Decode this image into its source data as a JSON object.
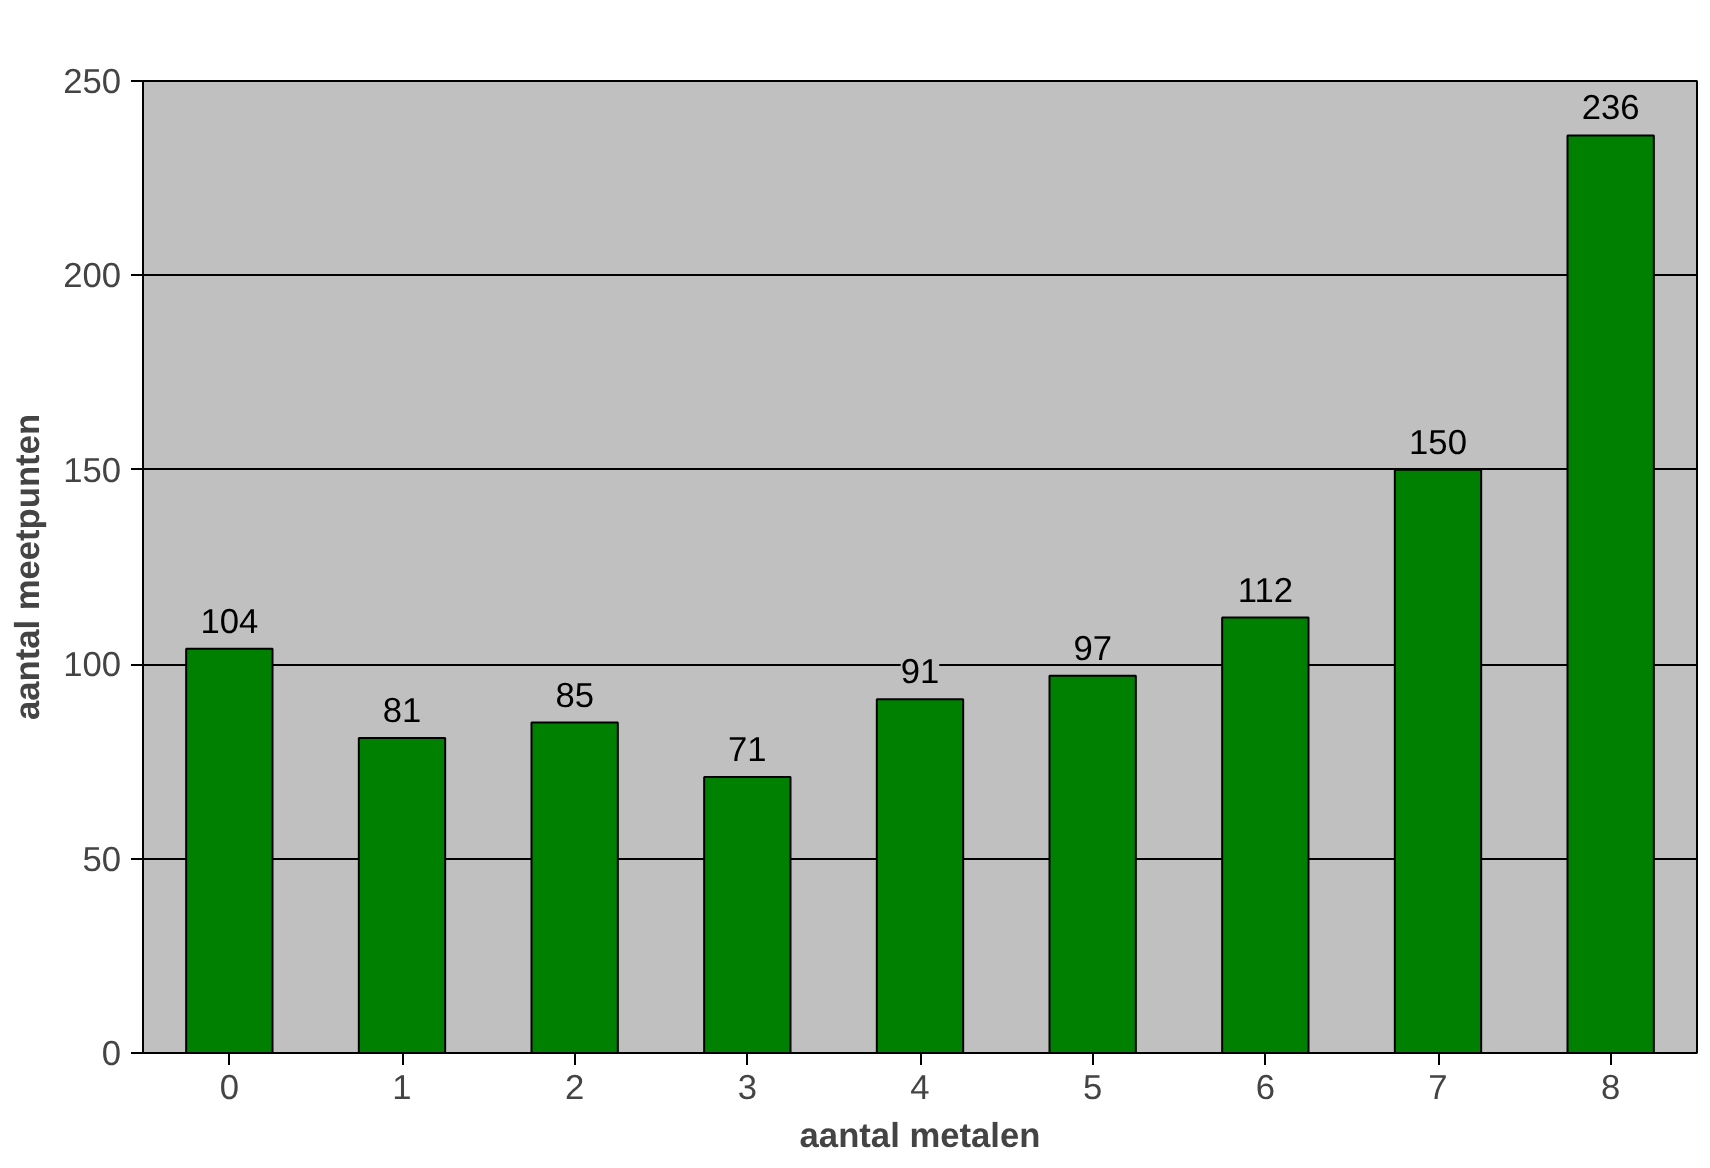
{
  "chart_data": {
    "type": "bar",
    "xlabel": "aantal metalen",
    "ylabel": "aantal meetpunten",
    "categories": [
      "0",
      "1",
      "2",
      "3",
      "4",
      "5",
      "6",
      "7",
      "8"
    ],
    "values": [
      104,
      81,
      85,
      71,
      91,
      97,
      112,
      150,
      236
    ],
    "color": "#008000",
    "ylim": [
      0,
      250
    ],
    "yticks": [
      0,
      50,
      100,
      150,
      200,
      250
    ],
    "grid": "y",
    "data_labels": true
  }
}
